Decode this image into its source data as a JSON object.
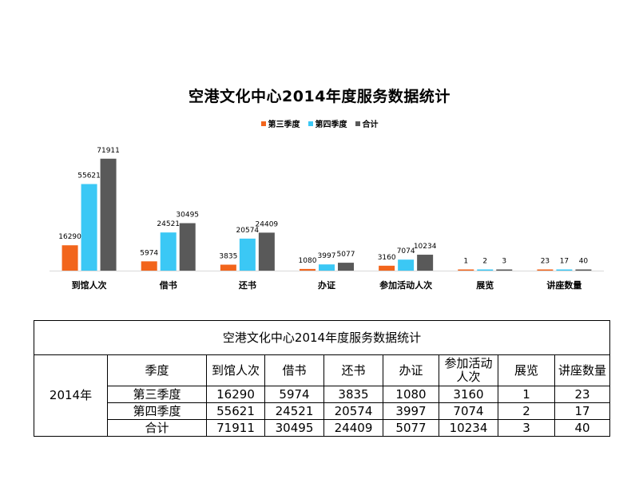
{
  "chart_data": {
    "type": "bar",
    "title": "空港文化中心2014年度服务数据统计",
    "categories": [
      "到馆人次",
      "借书",
      "还书",
      "办证",
      "参加活动人次",
      "展览",
      "讲座数量"
    ],
    "series": [
      {
        "name": "第三季度",
        "color": "#F2651C",
        "values": [
          16290,
          5974,
          3835,
          1080,
          3160,
          1,
          23
        ]
      },
      {
        "name": "第四季度",
        "color": "#3BC8F5",
        "values": [
          55621,
          24521,
          20574,
          3997,
          7074,
          2,
          17
        ]
      },
      {
        "name": "合计",
        "color": "#595959",
        "values": [
          71911,
          30495,
          24409,
          5077,
          10234,
          3,
          40
        ]
      }
    ],
    "legend_position": "top",
    "grid": false,
    "ylim": [
      0,
      80000
    ]
  },
  "table": {
    "title": "空港文化中心2014年度服务数据统计",
    "year": "2014年",
    "header": [
      "季度",
      "到馆人次",
      "借书",
      "还书",
      "办证",
      "参加活动人次",
      "展览",
      "讲座数量"
    ],
    "rows": [
      [
        "第三季度",
        "16290",
        "5974",
        "3835",
        "1080",
        "3160",
        "1",
        "23"
      ],
      [
        "第四季度",
        "55621",
        "24521",
        "20574",
        "3997",
        "7074",
        "2",
        "17"
      ],
      [
        "合计",
        "71911",
        "30495",
        "24409",
        "5077",
        "10234",
        "3",
        "40"
      ]
    ]
  }
}
